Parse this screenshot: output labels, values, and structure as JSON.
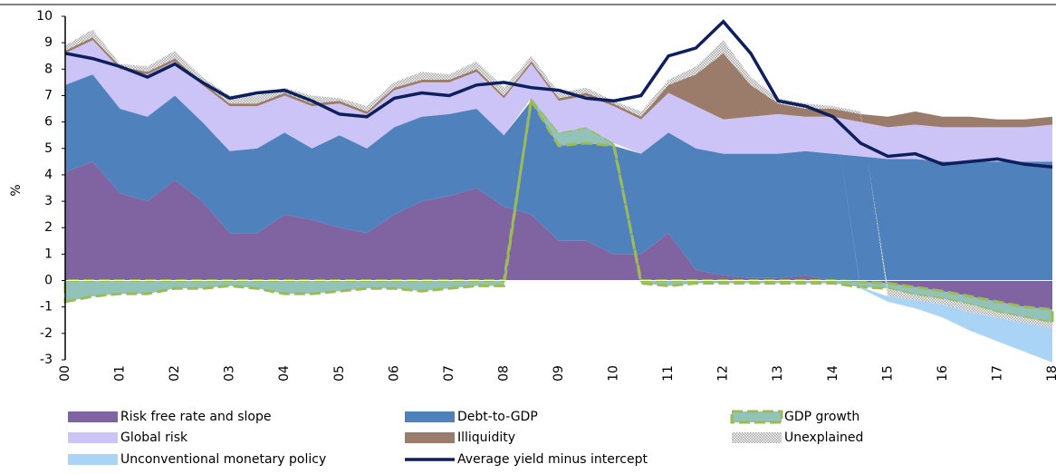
{
  "chart_data": {
    "type": "stacked-area",
    "y_label": "%",
    "x": [
      0,
      0.5,
      1,
      1.5,
      2,
      2.5,
      3,
      3.5,
      4,
      4.5,
      5,
      5.5,
      6,
      6.5,
      7,
      7.5,
      8,
      8.5,
      9,
      9.5,
      10,
      10.5,
      11,
      11.5,
      12,
      12.5,
      13,
      13.5,
      14,
      14.5,
      15,
      15.5,
      16,
      16.5,
      17,
      17.5,
      18
    ],
    "xlim": [
      0,
      18
    ],
    "xticks": [
      {
        "value": 0,
        "label": "00"
      },
      {
        "value": 1,
        "label": "01"
      },
      {
        "value": 2,
        "label": "02"
      },
      {
        "value": 3,
        "label": "03"
      },
      {
        "value": 4,
        "label": "04"
      },
      {
        "value": 5,
        "label": "05"
      },
      {
        "value": 6,
        "label": "06"
      },
      {
        "value": 7,
        "label": "07"
      },
      {
        "value": 8,
        "label": "08"
      },
      {
        "value": 9,
        "label": "09"
      },
      10,
      11,
      12,
      13,
      14,
      15,
      16,
      17,
      18
    ],
    "ylim": [
      -3,
      10
    ],
    "yticks": [
      -3,
      -2,
      -1,
      0,
      1,
      2,
      3,
      4,
      5,
      6,
      7,
      8,
      9,
      10
    ],
    "series": [
      {
        "name": "Risk free rate and slope",
        "type": "area",
        "color": "#8064a2",
        "values": [
          4.1,
          4.5,
          3.3,
          3.0,
          3.8,
          3.0,
          1.8,
          1.8,
          2.5,
          2.3,
          2.0,
          1.8,
          2.5,
          3.0,
          3.2,
          3.5,
          2.8,
          2.5,
          1.5,
          1.5,
          1.0,
          1.0,
          1.8,
          0.4,
          0.2,
          0.1,
          0.1,
          0.2,
          0,
          -0.05,
          -0.1,
          -0.25,
          -0.4,
          -0.6,
          -0.8,
          -1.0,
          -1.1
        ]
      },
      {
        "name": "Debt-to-GDP",
        "type": "area",
        "color": "#4f81bd",
        "values": [
          3.3,
          3.3,
          3.2,
          3.2,
          3.2,
          3.0,
          3.1,
          3.2,
          3.1,
          2.7,
          3.5,
          3.2,
          3.3,
          3.2,
          3.1,
          3.0,
          2.7,
          4.3,
          3.6,
          3.7,
          4.1,
          3.8,
          3.8,
          4.6,
          4.6,
          4.7,
          4.7,
          4.7,
          4.8,
          4.7,
          4.6,
          4.6,
          4.5,
          4.5,
          4.5,
          4.5,
          4.5
        ]
      },
      {
        "name": "GDP growth",
        "type": "area",
        "color": "#93c3b8",
        "edge_color": "#9bbb59",
        "values": [
          -0.8,
          -0.6,
          -0.5,
          -0.5,
          -0.3,
          -0.3,
          -0.2,
          -0.3,
          -0.5,
          -0.5,
          -0.4,
          -0.3,
          -0.3,
          -0.4,
          -0.3,
          -0.2,
          -0.2,
          0.1,
          0.5,
          0.6,
          0.1,
          -0.1,
          -0.2,
          -0.1,
          -0.1,
          -0.1,
          -0.1,
          -0.1,
          -0.1,
          -0.2,
          -0.2,
          -0.3,
          -0.3,
          -0.3,
          -0.4,
          -0.4,
          -0.5
        ]
      },
      {
        "name": "Global risk",
        "type": "area",
        "color": "#ccc4f7",
        "values": [
          1.2,
          1.3,
          1.5,
          1.6,
          1.3,
          1.4,
          1.7,
          1.6,
          1.4,
          1.6,
          1.2,
          1.3,
          1.4,
          1.3,
          1.2,
          1.4,
          1.4,
          1.3,
          1.2,
          1.2,
          1.4,
          1.3,
          1.5,
          1.6,
          1.3,
          1.4,
          1.5,
          1.3,
          1.4,
          1.3,
          1.2,
          1.3,
          1.3,
          1.3,
          1.3,
          1.3,
          1.4
        ]
      },
      {
        "name": "Illiquidity",
        "type": "area",
        "color": "#9b7b6a",
        "values": [
          0.1,
          0.1,
          0.1,
          0.1,
          0.1,
          0.1,
          0.1,
          0.1,
          0.1,
          0.1,
          0.1,
          0.1,
          0.1,
          0.1,
          0.1,
          0.1,
          0.1,
          0.1,
          0.1,
          0.1,
          0.1,
          0.1,
          0.3,
          1.2,
          2.5,
          1.2,
          0.4,
          0.3,
          0.3,
          0.3,
          0.4,
          0.5,
          0.4,
          0.4,
          0.3,
          0.3,
          0.3
        ]
      },
      {
        "name": "Unexplained",
        "type": "area",
        "color": "#a0a0a0",
        "hatched": true,
        "values": [
          0.2,
          0.3,
          0.1,
          0.2,
          0.3,
          0.2,
          0.3,
          0.3,
          0.2,
          0.3,
          0.1,
          0.2,
          0.2,
          0.3,
          0.2,
          0.3,
          0.3,
          0.2,
          0.2,
          0.2,
          0.1,
          0.2,
          0.2,
          0.3,
          0.5,
          0.3,
          0.2,
          0.2,
          0.1,
          0.1,
          -0.3,
          -0.2,
          -0.2,
          -0.3,
          -0.2,
          -0.2,
          -0.2
        ]
      },
      {
        "name": "Unconventional monetary policy",
        "type": "area",
        "color": "#a9d4f5",
        "values": [
          0,
          0,
          0,
          0,
          0,
          0,
          0,
          0,
          0,
          0,
          0,
          0,
          0,
          0,
          0,
          0,
          0,
          0,
          0,
          0,
          0,
          0,
          0,
          0,
          0,
          0,
          0,
          0,
          0,
          -0.05,
          -0.2,
          -0.3,
          -0.5,
          -0.7,
          -0.9,
          -1.1,
          -1.3
        ]
      },
      {
        "name": "Average yield minus intercept",
        "type": "line",
        "color": "#0d1f5c",
        "values": [
          8.6,
          8.4,
          8.1,
          7.7,
          8.2,
          7.5,
          6.9,
          7.1,
          7.2,
          6.8,
          6.3,
          6.2,
          6.9,
          7.1,
          7.0,
          7.4,
          7.5,
          7.3,
          7.2,
          6.9,
          6.8,
          7.0,
          8.5,
          8.8,
          9.8,
          8.6,
          6.8,
          6.6,
          6.2,
          5.2,
          4.7,
          4.8,
          4.4,
          4.5,
          4.6,
          4.4,
          4.3
        ]
      }
    ]
  }
}
